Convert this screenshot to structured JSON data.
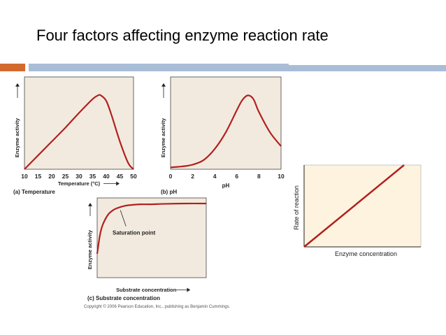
{
  "slide": {
    "title": "Four factors affecting enzyme reaction rate",
    "copyright": "Copyright © 2006 Pearson Education, Inc., publishing as Benjamin Cummings."
  },
  "colors": {
    "plot_bg": "#f3eadf",
    "curve": "#b0211f",
    "panel_d_bg": "#fdf3df",
    "accent_orange": "#d26a2e",
    "accent_blue": "#a9bdd6"
  },
  "chart_data": [
    {
      "id": "temperature",
      "type": "line",
      "panel_label": "(a) Temperature",
      "xlabel": "Temperature (°C)",
      "ylabel": "Enzyme activity",
      "x_ticks": [
        10,
        15,
        20,
        25,
        30,
        35,
        40,
        45,
        50
      ],
      "xlim": [
        10,
        50
      ],
      "ylim": [
        0,
        1
      ],
      "x": [
        10,
        15,
        20,
        25,
        30,
        35,
        37,
        38,
        40,
        42,
        45,
        48,
        50
      ],
      "y": [
        0.0,
        0.15,
        0.3,
        0.45,
        0.61,
        0.76,
        0.8,
        0.8,
        0.74,
        0.58,
        0.3,
        0.07,
        0.0
      ]
    },
    {
      "id": "ph",
      "type": "line",
      "panel_label": "(b) pH",
      "xlabel": "pH",
      "ylabel": "Enzyme activity",
      "x_ticks": [
        0,
        2,
        4,
        6,
        8,
        10
      ],
      "xlim": [
        0,
        10
      ],
      "ylim": [
        0,
        1
      ],
      "x": [
        0,
        1,
        2,
        3,
        4,
        5,
        6,
        6.5,
        7,
        7.5,
        8,
        9,
        10
      ],
      "y": [
        0.02,
        0.03,
        0.05,
        0.1,
        0.22,
        0.4,
        0.64,
        0.75,
        0.8,
        0.76,
        0.62,
        0.4,
        0.25
      ]
    },
    {
      "id": "substrate",
      "type": "line",
      "panel_label": "(c) Substrate concentration",
      "xlabel": "Substrate concentration",
      "ylabel": "Enzyme activity",
      "annotation": "Saturation point",
      "xlim": [
        0,
        10
      ],
      "ylim": [
        0,
        1
      ],
      "x": [
        0,
        0.25,
        0.5,
        1,
        1.5,
        2,
        2.5,
        3,
        4,
        5,
        6,
        8,
        10
      ],
      "y": [
        0.3,
        0.53,
        0.66,
        0.79,
        0.85,
        0.88,
        0.9,
        0.91,
        0.92,
        0.92,
        0.925,
        0.93,
        0.93
      ]
    },
    {
      "id": "enzyme",
      "type": "line",
      "panel_label": "",
      "xlabel": "Enzyme concentration",
      "ylabel": "Rate of reaction",
      "xlim": [
        0,
        1
      ],
      "ylim": [
        0,
        1
      ],
      "x": [
        0,
        1
      ],
      "y": [
        0,
        1
      ]
    }
  ]
}
